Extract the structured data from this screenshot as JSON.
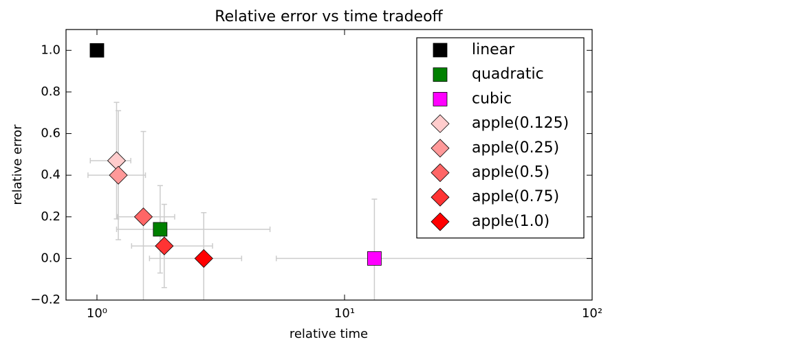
{
  "chart_data": {
    "type": "scatter",
    "title": "Relative error vs time tradeoff",
    "x_label": "relative time",
    "y_label": "relative error",
    "log_x": true,
    "xlim": [
      0.75,
      100
    ],
    "xticks": [
      {
        "value": 1,
        "label": "10⁰"
      },
      {
        "value": 10,
        "label": "10¹"
      },
      {
        "value": 100,
        "label": "10²"
      }
    ],
    "ylim": [
      -0.2,
      1.1
    ],
    "yticks": [
      {
        "value": -0.2,
        "label": "−0.2"
      },
      {
        "value": 0,
        "label": "0.0"
      },
      {
        "value": 0.2,
        "label": "0.2"
      },
      {
        "value": 0.4,
        "label": "0.4"
      },
      {
        "value": 0.6,
        "label": "0.6"
      },
      {
        "value": 0.8,
        "label": "0.8"
      },
      {
        "value": 1.0,
        "label": "1.0"
      }
    ],
    "grid": false,
    "legend": "upper right",
    "errorbar_color": "#cccccc",
    "series": [
      {
        "name": "linear",
        "color": "#000000",
        "marker": "square",
        "x": [
          1.0
        ],
        "values": [
          1.0
        ]
      },
      {
        "name": "quadratic",
        "color": "#008000",
        "marker": "square",
        "x": [
          1.8
        ],
        "values": [
          0.14
        ],
        "xerr": [
          [
            0.6,
            3.2
          ]
        ],
        "yerr": [
          0.21
        ]
      },
      {
        "name": "cubic",
        "color": "#ff00ff",
        "marker": "square",
        "x": [
          13.2
        ],
        "values": [
          0.0
        ],
        "xerr": [
          [
            7.9,
            90
          ]
        ],
        "yerr": [
          0.285
        ]
      },
      {
        "name": "apple(0.125)",
        "color": "#ffcccc",
        "marker": "diamond",
        "x": [
          1.2
        ],
        "values": [
          0.47
        ],
        "xerr": [
          [
            0.26,
            0.17
          ]
        ],
        "yerr": [
          0.28
        ]
      },
      {
        "name": "apple(0.25)",
        "color": "#ff9999",
        "marker": "diamond",
        "x": [
          1.22
        ],
        "values": [
          0.4
        ],
        "xerr": [
          [
            0.3,
            0.35
          ]
        ],
        "yerr": [
          0.31
        ]
      },
      {
        "name": "apple(0.5)",
        "color": "#ff6666",
        "marker": "diamond",
        "x": [
          1.54
        ],
        "values": [
          0.2
        ],
        "xerr": [
          [
            0.33,
            0.52
          ]
        ],
        "yerr": [
          0.41
        ]
      },
      {
        "name": "apple(0.75)",
        "color": "#ff3333",
        "marker": "diamond",
        "x": [
          1.87
        ],
        "values": [
          0.06
        ],
        "xerr": [
          [
            0.49,
            1.06
          ]
        ],
        "yerr": [
          0.2
        ]
      },
      {
        "name": "apple(1.0)",
        "color": "#ff0000",
        "marker": "diamond",
        "x": [
          2.7
        ],
        "values": [
          0.0
        ],
        "xerr": [
          [
            1.07,
            1.14
          ]
        ],
        "yerr": [
          0.22
        ]
      }
    ]
  }
}
